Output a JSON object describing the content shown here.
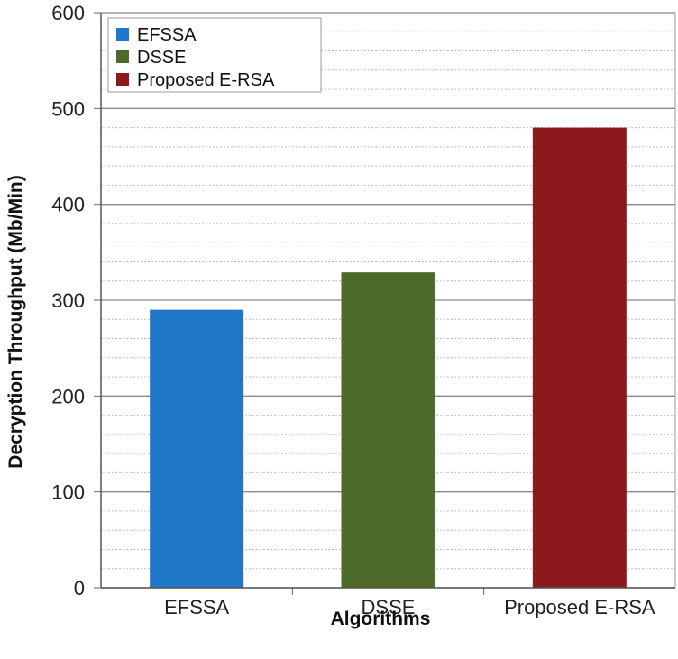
{
  "chart_data": {
    "type": "bar",
    "categories": [
      "EFSSA",
      "DSSE",
      "Proposed E-RSA"
    ],
    "values": [
      290,
      329,
      480
    ],
    "colors": [
      "#1f77c8",
      "#4e6a2b",
      "#8c1a1d"
    ],
    "xlabel": "Algorithms",
    "ylabel": "Decryption Throughput (Mb/Min)",
    "ylim": [
      0,
      600
    ],
    "yticks": [
      "0",
      "100",
      "200",
      "300",
      "400",
      "500",
      "600"
    ],
    "grid": true,
    "legend": {
      "placement": "top-left",
      "entries": [
        "EFSSA",
        "DSSE",
        "Proposed E-RSA"
      ]
    }
  }
}
